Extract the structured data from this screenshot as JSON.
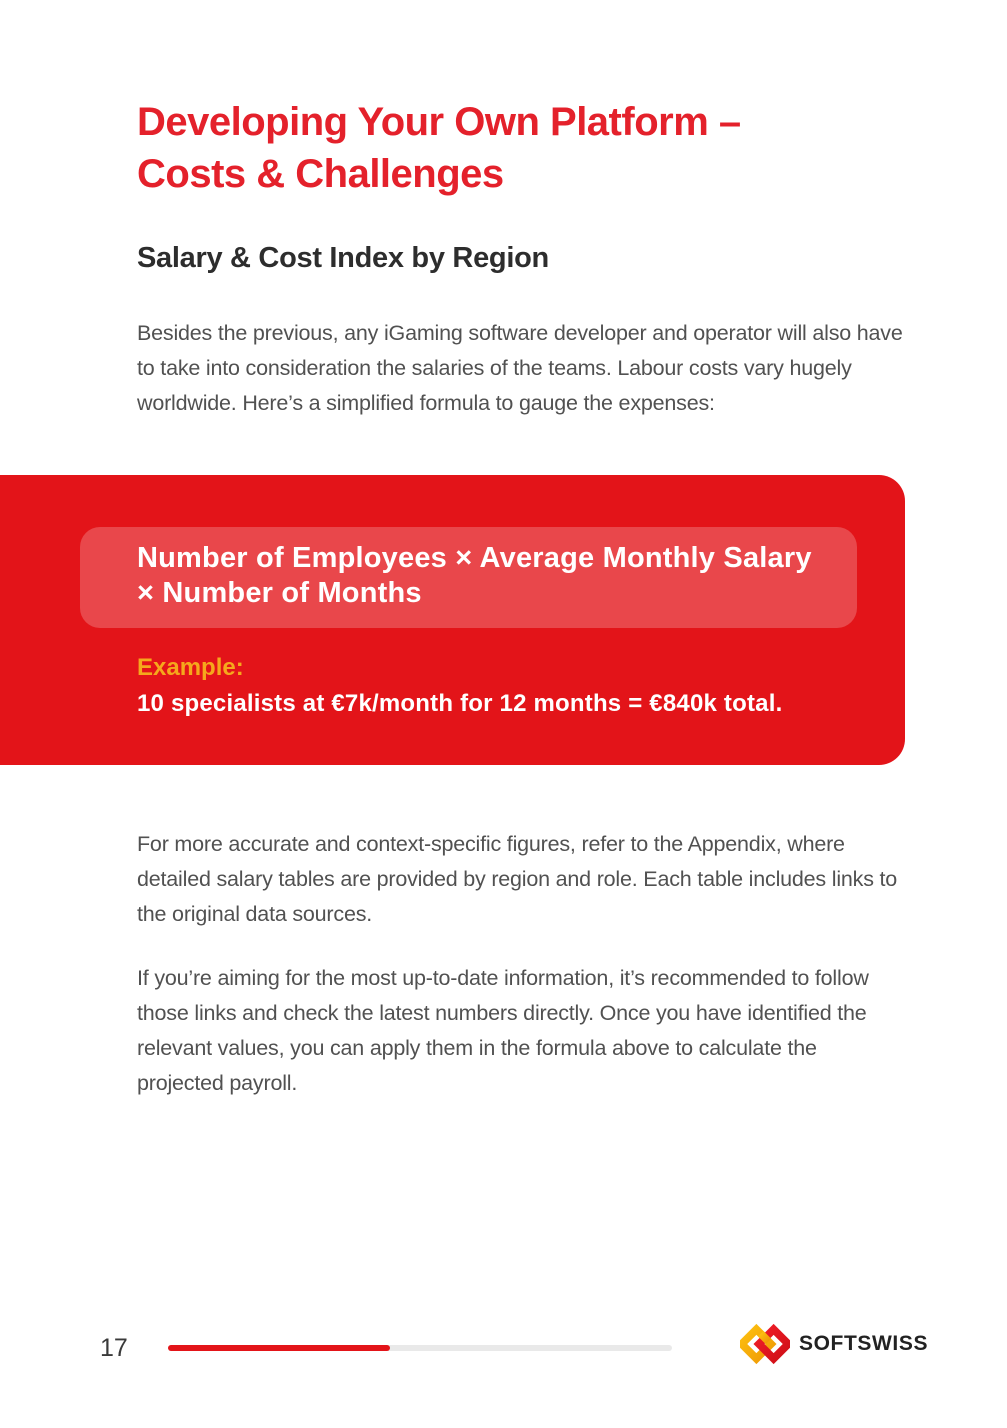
{
  "document": {
    "title_lines": [
      "Developing Your Own Platform –",
      "Costs & Challenges"
    ],
    "subtitle": "Salary & Cost Index by Region",
    "intro": "Besides the previous, any iGaming software developer and operator will also have to take into consideration the salaries of the teams. Labour costs vary hugely worldwide. Here’s a simplified formula to gauge the expenses:",
    "formula_card": {
      "formula": "Number of Employees × Average Monthly Salary × Number of Months",
      "example_label": "Example:",
      "example_text": "10 specialists at €7k/month for 12 months = €840k total."
    },
    "paragraphs": {
      "appendix": "For more accurate and context-specific figures, refer to the Appendix, where detailed salary tables are provided by region and role. Each table includes links to the original data sources.",
      "links": "If you’re aiming for the most up-to-date information, it’s recommended to follow those links and check the latest numbers directly. Once you have identified the relevant values, you can apply them in the formula above to calculate the projected payroll."
    },
    "footer": {
      "page_number": "17",
      "progress_percent": 44,
      "logo_text": "SOFTSWISS"
    },
    "colors": {
      "accent_red": "#e31419",
      "heading_red": "#e4212b",
      "example_gold": "#f5a81c",
      "body_gray": "#515151",
      "progress_track": "#e9e9e9",
      "logo_gold": "#f2a508",
      "logo_red": "#e01420"
    }
  }
}
